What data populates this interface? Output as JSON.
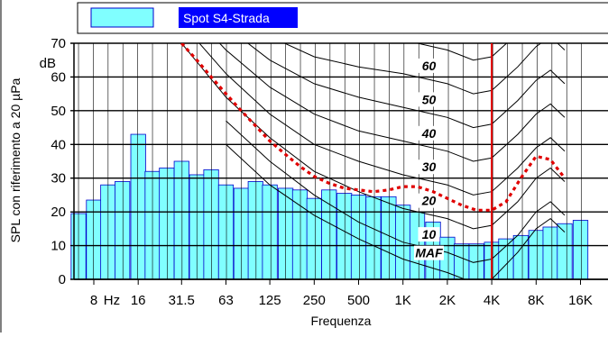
{
  "chart_data": {
    "type": "bar",
    "legend": {
      "label": "Spot S4-Strada",
      "position": "top",
      "swatch_color": "#80ffff",
      "label_bg": "#0000ff",
      "label_color": "#ffffff"
    },
    "xlabel": "Frequenza",
    "ylabel": "SPL con riferimento a 20 µPa",
    "yunit": "dB",
    "ylim": [
      0,
      70
    ],
    "yticks": [
      0,
      10,
      20,
      30,
      40,
      50,
      60,
      70
    ],
    "xticks": [
      {
        "label": "8",
        "freq": 8
      },
      {
        "label": "Hz",
        "freq": 10.6
      },
      {
        "label": "16",
        "freq": 16
      },
      {
        "label": "31.5",
        "freq": 31.5
      },
      {
        "label": "63",
        "freq": 63
      },
      {
        "label": "125",
        "freq": 125
      },
      {
        "label": "250",
        "freq": 250
      },
      {
        "label": "500",
        "freq": 500
      },
      {
        "label": "1K",
        "freq": 1000
      },
      {
        "label": "2K",
        "freq": 2000
      },
      {
        "label": "4K",
        "freq": 4000
      },
      {
        "label": "8K",
        "freq": 8000
      },
      {
        "label": "16K",
        "freq": 16000
      }
    ],
    "bar_color": "#80ffff",
    "bar_edge": "#0000cc",
    "series": [
      {
        "values": [
          {
            "freq": 6.3,
            "spl": 19.5
          },
          {
            "freq": 8,
            "spl": 23.5
          },
          {
            "freq": 10,
            "spl": 28
          },
          {
            "freq": 12.5,
            "spl": 29
          },
          {
            "freq": 16,
            "spl": 43
          },
          {
            "freq": 20,
            "spl": 32
          },
          {
            "freq": 25,
            "spl": 33
          },
          {
            "freq": 31.5,
            "spl": 35
          },
          {
            "freq": 40,
            "spl": 31
          },
          {
            "freq": 50,
            "spl": 32.5
          },
          {
            "freq": 63,
            "spl": 28
          },
          {
            "freq": 80,
            "spl": 27
          },
          {
            "freq": 100,
            "spl": 29
          },
          {
            "freq": 125,
            "spl": 28
          },
          {
            "freq": 160,
            "spl": 27
          },
          {
            "freq": 200,
            "spl": 26.5
          },
          {
            "freq": 250,
            "spl": 24
          },
          {
            "freq": 315,
            "spl": 26.5
          },
          {
            "freq": 400,
            "spl": 25.5
          },
          {
            "freq": 500,
            "spl": 25
          },
          {
            "freq": 630,
            "spl": 24.5
          },
          {
            "freq": 800,
            "spl": 24.5
          },
          {
            "freq": 1000,
            "spl": 22
          },
          {
            "freq": 1250,
            "spl": 20
          },
          {
            "freq": 1600,
            "spl": 17
          },
          {
            "freq": 2000,
            "spl": 12.5
          },
          {
            "freq": 2500,
            "spl": 10.5
          },
          {
            "freq": 3150,
            "spl": 10.5
          },
          {
            "freq": 4000,
            "spl": 11
          },
          {
            "freq": 5000,
            "spl": 12
          },
          {
            "freq": 6300,
            "spl": 13
          },
          {
            "freq": 8000,
            "spl": 14.5
          },
          {
            "freq": 10000,
            "spl": 15.5
          },
          {
            "freq": 12500,
            "spl": 16.5
          },
          {
            "freq": 16000,
            "spl": 17.5
          }
        ]
      }
    ],
    "contours": [
      {
        "label": "MAF",
        "label_freq": 1500,
        "label_spl": 6.5,
        "points": [
          [
            63,
            40
          ],
          [
            125,
            28
          ],
          [
            250,
            19
          ],
          [
            500,
            12
          ],
          [
            1000,
            6
          ],
          [
            2000,
            2
          ],
          [
            3000,
            -1
          ],
          [
            4000,
            0
          ],
          [
            6000,
            8
          ],
          [
            8000,
            15
          ],
          [
            10000,
            18
          ],
          [
            12500,
            14
          ]
        ]
      },
      {
        "label": "10",
        "label_freq": 1500,
        "label_spl": 12,
        "points": [
          [
            63,
            47
          ],
          [
            125,
            35
          ],
          [
            250,
            25
          ],
          [
            500,
            17
          ],
          [
            1000,
            11
          ],
          [
            2000,
            8
          ],
          [
            3000,
            5
          ],
          [
            4000,
            6
          ],
          [
            6000,
            13
          ],
          [
            8000,
            20
          ],
          [
            10000,
            23
          ],
          [
            12500,
            19
          ]
        ]
      },
      {
        "label": "20",
        "label_freq": 1500,
        "label_spl": 22,
        "points": [
          [
            20,
            90
          ],
          [
            31.5,
            70
          ],
          [
            63,
            54
          ],
          [
            125,
            42
          ],
          [
            250,
            32
          ],
          [
            500,
            26
          ],
          [
            1000,
            21
          ],
          [
            2000,
            18
          ],
          [
            3000,
            15
          ],
          [
            4000,
            16
          ],
          [
            6000,
            23
          ],
          [
            8000,
            30
          ],
          [
            10000,
            33
          ],
          [
            12500,
            29
          ]
        ]
      },
      {
        "label": "30",
        "label_freq": 1500,
        "label_spl": 32,
        "points": [
          [
            20,
            95
          ],
          [
            31.5,
            76
          ],
          [
            63,
            61
          ],
          [
            125,
            49
          ],
          [
            250,
            40
          ],
          [
            500,
            35
          ],
          [
            1000,
            31
          ],
          [
            2000,
            28
          ],
          [
            3000,
            25
          ],
          [
            4000,
            26
          ],
          [
            6000,
            33
          ],
          [
            8000,
            39
          ],
          [
            10000,
            42
          ],
          [
            12500,
            38
          ]
        ]
      },
      {
        "label": "40",
        "label_freq": 1500,
        "label_spl": 42,
        "points": [
          [
            31.5,
            82
          ],
          [
            63,
            68
          ],
          [
            125,
            57
          ],
          [
            250,
            49
          ],
          [
            500,
            44
          ],
          [
            1000,
            41
          ],
          [
            2000,
            38
          ],
          [
            3000,
            35
          ],
          [
            4000,
            36
          ],
          [
            6000,
            43
          ],
          [
            8000,
            49
          ],
          [
            10000,
            52
          ],
          [
            12500,
            48
          ]
        ]
      },
      {
        "label": "50",
        "label_freq": 1500,
        "label_spl": 52,
        "points": [
          [
            31.5,
            88
          ],
          [
            63,
            75
          ],
          [
            125,
            65
          ],
          [
            250,
            58
          ],
          [
            500,
            54
          ],
          [
            1000,
            51
          ],
          [
            2000,
            48
          ],
          [
            3000,
            45
          ],
          [
            4000,
            46
          ],
          [
            6000,
            53
          ],
          [
            8000,
            59
          ],
          [
            10000,
            62
          ],
          [
            12500,
            58
          ]
        ]
      },
      {
        "label": "60",
        "label_freq": 1500,
        "label_spl": 62,
        "points": [
          [
            63,
            82
          ],
          [
            125,
            72
          ],
          [
            250,
            66
          ],
          [
            500,
            63
          ],
          [
            1000,
            61
          ],
          [
            2000,
            58
          ],
          [
            3000,
            55
          ],
          [
            4000,
            56
          ],
          [
            6000,
            63
          ],
          [
            8000,
            69
          ],
          [
            10000,
            72
          ],
          [
            12500,
            68
          ]
        ]
      },
      {
        "label": "",
        "label_freq": 0,
        "label_spl": 0,
        "points": [
          [
            125,
            80
          ],
          [
            250,
            75
          ],
          [
            500,
            72
          ],
          [
            1000,
            71
          ],
          [
            2000,
            68
          ],
          [
            3000,
            65
          ],
          [
            4000,
            66
          ],
          [
            6000,
            73
          ],
          [
            8000,
            79
          ]
        ]
      }
    ],
    "threshold_curve": {
      "color": "#e00000",
      "style": "dashed",
      "points": [
        [
          31.5,
          70
        ],
        [
          40,
          65
        ],
        [
          50,
          60
        ],
        [
          63,
          55
        ],
        [
          80,
          50
        ],
        [
          100,
          45.5
        ],
        [
          125,
          41
        ],
        [
          160,
          37
        ],
        [
          200,
          33.5
        ],
        [
          250,
          30.5
        ],
        [
          315,
          28.5
        ],
        [
          400,
          27
        ],
        [
          500,
          26.5
        ],
        [
          630,
          26
        ],
        [
          800,
          26.5
        ],
        [
          1000,
          27.5
        ],
        [
          1250,
          27.5
        ],
        [
          1600,
          26
        ],
        [
          2000,
          24
        ],
        [
          2500,
          22
        ],
        [
          3150,
          20.5
        ],
        [
          4000,
          20.5
        ],
        [
          5000,
          23
        ],
        [
          6300,
          30
        ],
        [
          8000,
          36.5
        ],
        [
          10000,
          35.5
        ],
        [
          12500,
          30
        ]
      ]
    },
    "marker": {
      "freq": 4000,
      "color": "#e00000"
    }
  }
}
